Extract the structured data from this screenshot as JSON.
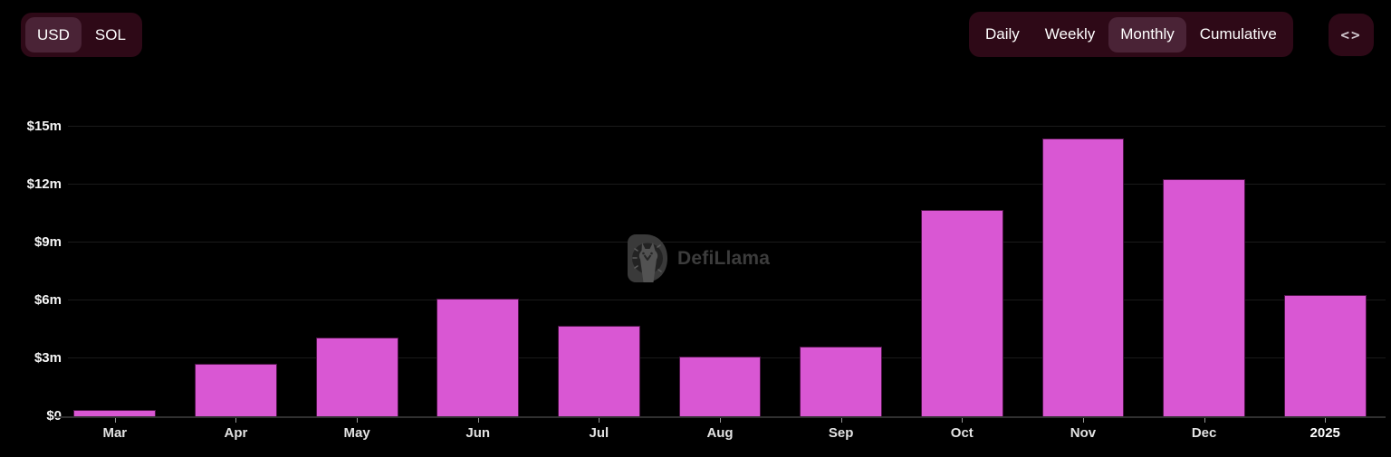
{
  "header": {
    "currency_toggle": {
      "options": [
        "USD",
        "SOL"
      ],
      "selected": "USD",
      "selected_index": 0
    },
    "interval_toggle": {
      "options": [
        "Daily",
        "Weekly",
        "Monthly",
        "Cumulative"
      ],
      "selected": "Monthly",
      "selected_index": 2
    },
    "embed_button": {
      "icon": "code-icon",
      "glyph": "<>"
    }
  },
  "watermark": {
    "label": "DefiLlama"
  },
  "chart_data": {
    "type": "bar",
    "title": "",
    "categories": [
      "Mar",
      "Apr",
      "May",
      "Jun",
      "Jul",
      "Aug",
      "Sep",
      "Oct",
      "Nov",
      "Dec",
      "2025"
    ],
    "values": [
      0.35,
      2.7,
      4.1,
      6.1,
      4.7,
      3.1,
      3.6,
      10.7,
      14.4,
      12.3,
      6.3
    ],
    "unit": "USD millions",
    "xlabel": "",
    "ylabel": "",
    "ylim": [
      0,
      15
    ],
    "y_ticks": [
      0,
      3,
      6,
      9,
      12,
      15
    ],
    "y_tick_labels": [
      "$0",
      "$3m",
      "$6m",
      "$9m",
      "$12m",
      "$15m"
    ],
    "bold_categories": [
      "2025"
    ],
    "grid": true,
    "legend": false,
    "bar_color": "#d957d3",
    "bar_border_color": "#4e1448",
    "background_color": "#000000",
    "gridline_color": "#1a1a1a"
  }
}
